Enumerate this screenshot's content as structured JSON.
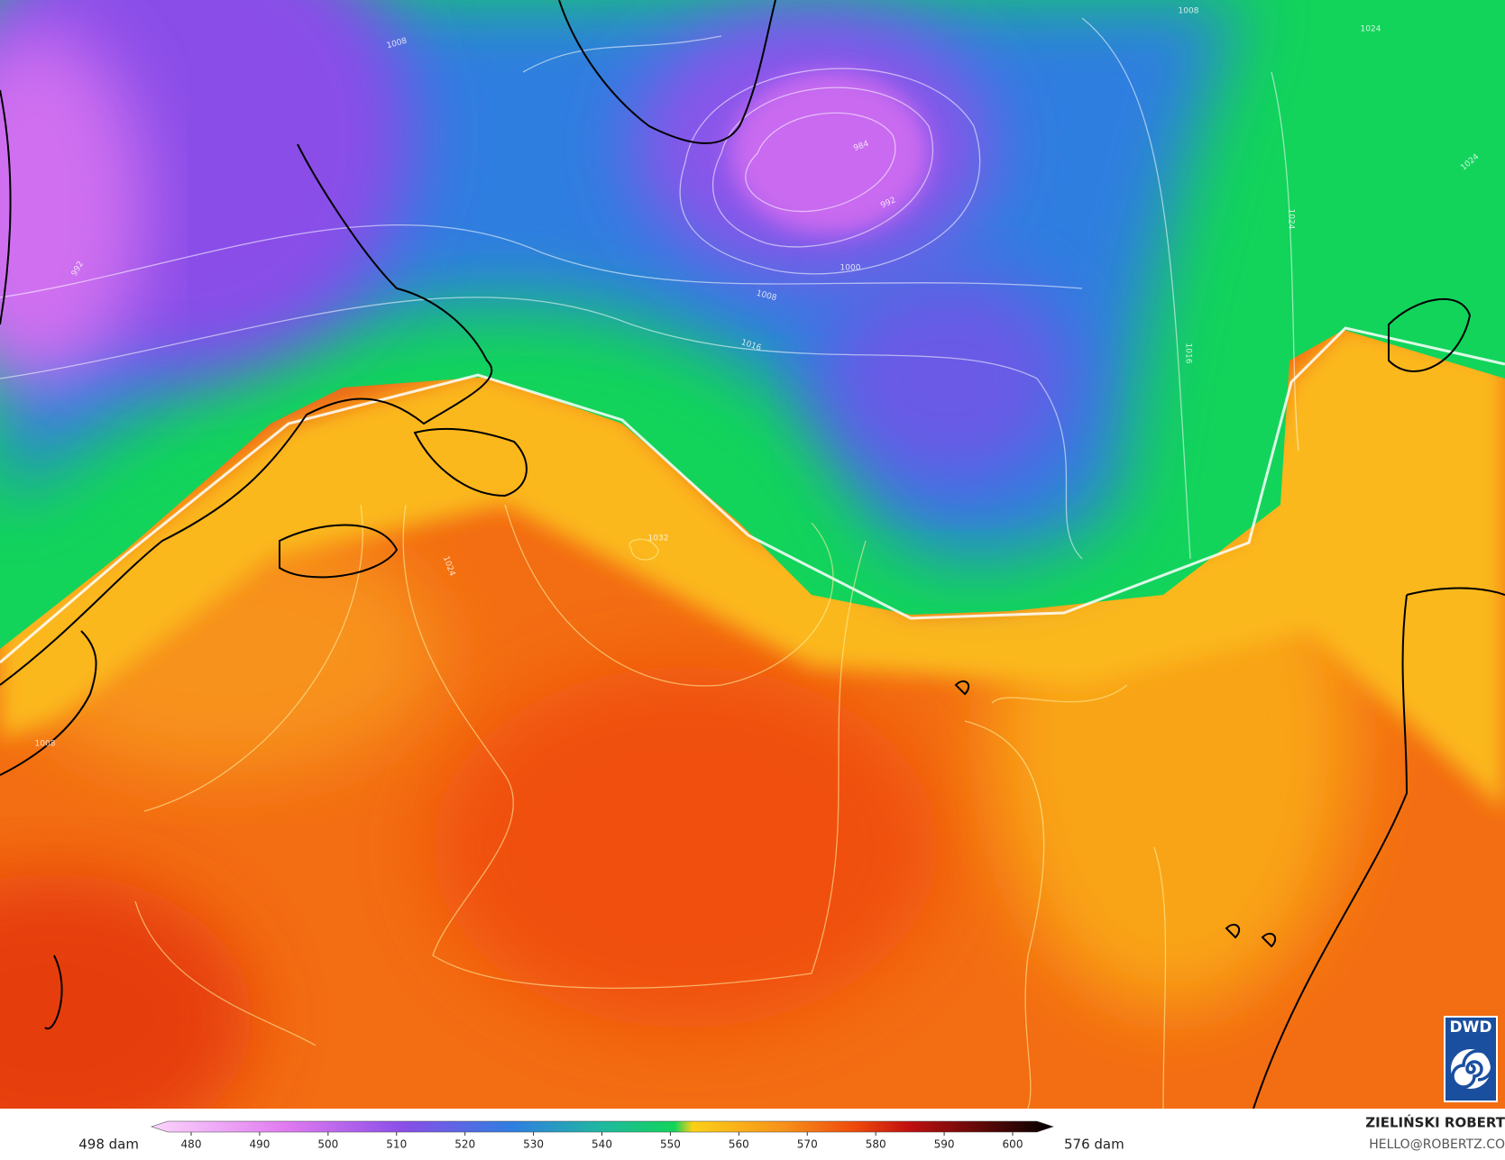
{
  "map": {
    "isobar_labels": [
      "1008",
      "984",
      "992",
      "1000",
      "1008",
      "1016",
      "1016",
      "1024",
      "1024",
      "1024",
      "1024",
      "1032",
      "992",
      "1008",
      "1008"
    ]
  },
  "colorbar": {
    "min_label": "498 dam",
    "max_label": "576 dam",
    "ticks": [
      480,
      490,
      500,
      510,
      520,
      530,
      540,
      550,
      560,
      570,
      580,
      590,
      600
    ]
  },
  "credit": {
    "author": "ZIELIŃSKI ROBERT",
    "email": "HELLO@ROBERTZ.CO",
    "logo": "DWD"
  }
}
